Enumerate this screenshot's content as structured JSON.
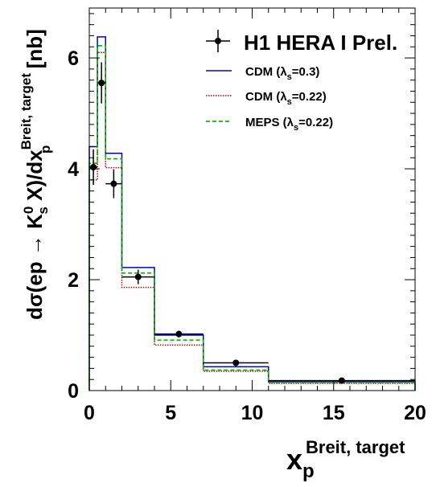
{
  "chart_data": {
    "type": "step-histogram",
    "xlabel": "x_p^{Breit, target}",
    "xlabel_main": "x",
    "xlabel_sub": "p",
    "xlabel_sup": "Breit, target",
    "ylabel_parts": {
      "a": "dσ(ep → K",
      "b_sup": "0",
      "b_sub": "s",
      "c": " X)/dx",
      "d_sup": "Breit, target",
      "d_sub": "p",
      "e": " [nb]"
    },
    "xlim": [
      0,
      20
    ],
    "ylim": [
      0,
      6.9
    ],
    "x_ticks": [
      0,
      5,
      10,
      15,
      20
    ],
    "x_tick_labels": [
      "0",
      "5",
      "10",
      "15",
      "20"
    ],
    "y_ticks": [
      0,
      2,
      4,
      6
    ],
    "y_tick_labels": [
      "0",
      "2",
      "4",
      "6"
    ],
    "bin_edges": [
      0,
      0.5,
      1,
      2,
      4,
      7,
      11,
      20
    ],
    "data": {
      "name": "H1 HERA I Prel.",
      "x": [
        0.25,
        0.75,
        1.5,
        3.0,
        5.5,
        9.0,
        15.5
      ],
      "y": [
        4.03,
        5.55,
        3.73,
        2.05,
        1.02,
        0.5,
        0.18
      ],
      "yerr": [
        0.32,
        0.37,
        0.26,
        0.13,
        0.06,
        0.04,
        0.02
      ],
      "xerr": [
        0.25,
        0.25,
        0.5,
        1.0,
        1.5,
        2.0,
        4.5
      ]
    },
    "series": [
      {
        "name": "CDM (λ_s=0.3)",
        "label_main": "CDM (λ",
        "label_sub": "s",
        "label_tail": "=0.3)",
        "color": "#0000cc",
        "style": "solid",
        "values": [
          4.4,
          6.38,
          4.28,
          2.22,
          1.0,
          0.43,
          0.16
        ]
      },
      {
        "name": "CDM (λ_s=0.22)",
        "label_main": "CDM (λ",
        "label_sub": "s",
        "label_tail": "=0.22)",
        "color": "#aa0000",
        "style": "dotted",
        "values": [
          3.8,
          6.1,
          4.02,
          1.86,
          0.82,
          0.35,
          0.13
        ]
      },
      {
        "name": "MEPS (λ_s=0.22)",
        "label_main": "MEPS (λ",
        "label_sub": "s",
        "label_tail": "=0.22)",
        "color": "#00bb00",
        "style": "dashed",
        "values": [
          4.1,
          6.22,
          4.18,
          2.12,
          0.91,
          0.37,
          0.145
        ]
      }
    ],
    "legend_position": "top-right",
    "grid": false
  }
}
